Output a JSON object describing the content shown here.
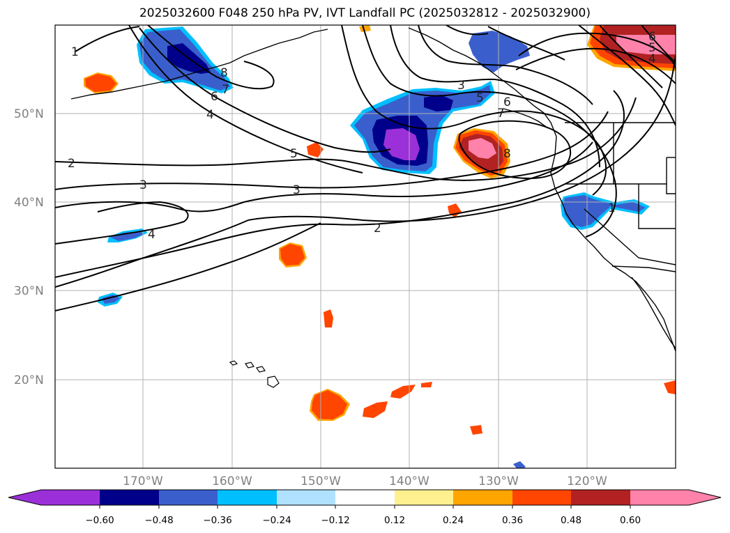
{
  "title": "2025032600 F048 250 hPa PV, IVT Landfall PC (2025032812 - 2025032900)",
  "map": {
    "lon_range": [
      -180,
      -110
    ],
    "lat_range": [
      10,
      60
    ],
    "lat_ticks": [
      {
        "value": 50,
        "label": "50°N"
      },
      {
        "value": 40,
        "label": "40°N"
      },
      {
        "value": 30,
        "label": "30°N"
      },
      {
        "value": 20,
        "label": "20°N"
      }
    ],
    "lon_ticks": [
      {
        "value": -170,
        "label": "170°W"
      },
      {
        "value": -160,
        "label": "160°W"
      },
      {
        "value": -150,
        "label": "150°W"
      },
      {
        "value": -140,
        "label": "140°W"
      },
      {
        "value": -130,
        "label": "130°W"
      },
      {
        "value": -120,
        "label": "120°W"
      }
    ],
    "gridlines": true
  },
  "contour_labels": [
    "1",
    "2",
    "3",
    "4",
    "5",
    "6",
    "7",
    "8",
    "3",
    "5",
    "6",
    "7",
    "8",
    "6",
    "5",
    "4",
    "3",
    "2",
    "1",
    "4"
  ],
  "colorbar": {
    "colors": [
      "#9b30d9",
      "#00008b",
      "#3a5fcd",
      "#00bfff",
      "#b0e2ff",
      "#ffffff",
      "#fff08f",
      "#ffa500",
      "#ff4500",
      "#b22222",
      "#ff82ab"
    ],
    "extend": "both",
    "ticks": [
      "−0.60",
      "−0.48",
      "−0.36",
      "−0.24",
      "−0.12",
      "0.12",
      "0.24",
      "0.36",
      "0.48",
      "0.60"
    ]
  }
}
